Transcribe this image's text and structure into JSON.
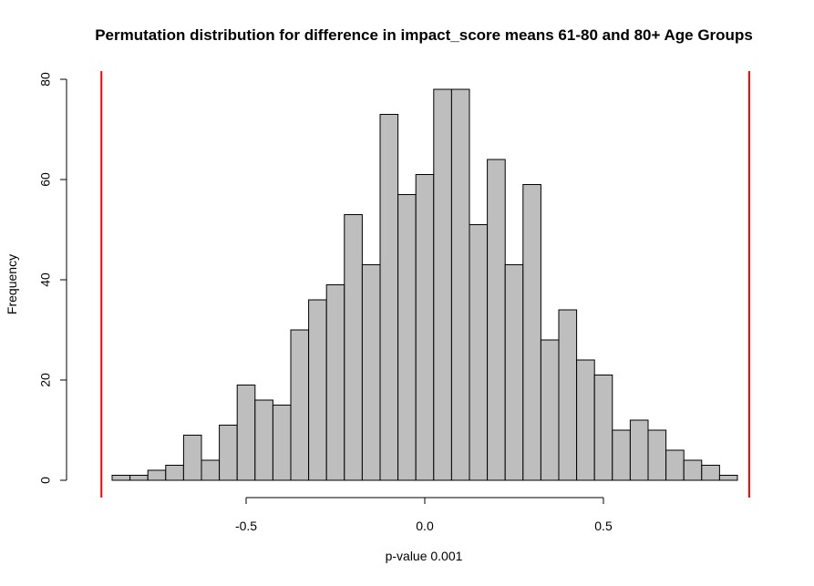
{
  "chart_data": {
    "type": "bar",
    "title": "Permutation distribution for difference in impact_score means 61-80 and 80+ Age Groups",
    "xlabel": "p-value 0.001",
    "ylabel": "Frequency",
    "bin_start": -0.875,
    "bin_width": 0.05,
    "values": [
      1,
      1,
      2,
      3,
      9,
      4,
      11,
      19,
      16,
      15,
      30,
      36,
      39,
      53,
      43,
      73,
      57,
      61,
      78,
      78,
      51,
      64,
      43,
      59,
      28,
      34,
      24,
      21,
      10,
      12,
      10,
      6,
      4,
      3,
      1
    ],
    "xticks": [
      -0.5,
      0.0,
      0.5
    ],
    "xtick_labels": [
      "-0.5",
      "0.0",
      "0.5"
    ],
    "yticks": [
      0,
      20,
      40,
      60,
      80
    ],
    "ytick_labels": [
      "0",
      "20",
      "40",
      "60",
      "80"
    ],
    "xlim": [
      -0.925,
      0.93
    ],
    "ylim": [
      0,
      80
    ],
    "observed_lines": [
      -0.905,
      0.908
    ],
    "bar_color": "#bebebe",
    "line_color": "#ff0000"
  }
}
